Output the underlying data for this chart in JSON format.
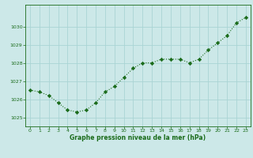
{
  "hours": [
    0,
    1,
    2,
    3,
    4,
    5,
    6,
    7,
    8,
    9,
    10,
    11,
    12,
    13,
    14,
    15,
    16,
    17,
    18,
    19,
    20,
    21,
    22,
    23
  ],
  "pressure": [
    1026.5,
    1026.4,
    1026.2,
    1025.8,
    1025.4,
    1025.3,
    1025.4,
    1025.8,
    1026.4,
    1026.7,
    1027.2,
    1027.7,
    1028.0,
    1028.0,
    1028.2,
    1028.2,
    1028.2,
    1028.0,
    1028.2,
    1028.7,
    1029.1,
    1029.5,
    1030.2,
    1030.5
  ],
  "line_color": "#1a6b1a",
  "marker_style": "D",
  "marker_size": 2.2,
  "bg_color": "#cce8e8",
  "grid_color": "#aad4d4",
  "xlabel": "Graphe pression niveau de la mer (hPa)",
  "xlabel_color": "#1a6b1a",
  "tick_color": "#1a6b1a",
  "ylim": [
    1024.5,
    1031.2
  ],
  "yticks": [
    1025,
    1026,
    1027,
    1028,
    1029,
    1030
  ],
  "xlim": [
    -0.5,
    23.5
  ],
  "xticks": [
    0,
    1,
    2,
    3,
    4,
    5,
    6,
    7,
    8,
    9,
    10,
    11,
    12,
    13,
    14,
    15,
    16,
    17,
    18,
    19,
    20,
    21,
    22,
    23
  ]
}
